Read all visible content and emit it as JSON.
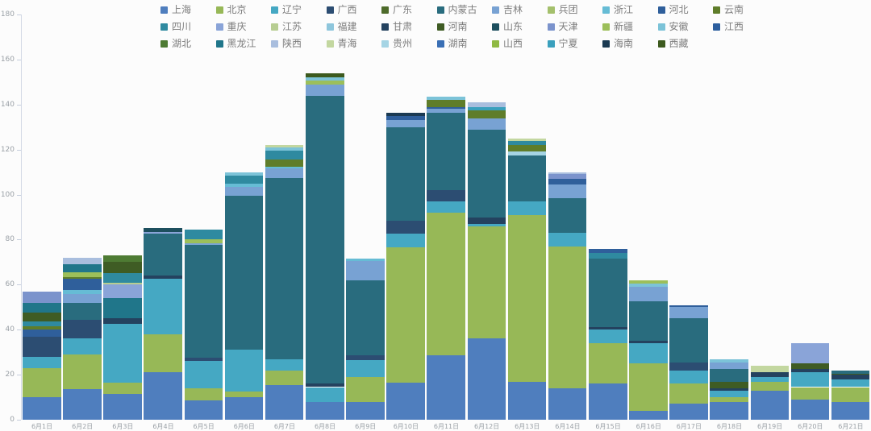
{
  "chart_data": {
    "type": "bar",
    "stacked": true,
    "title": "",
    "xlabel": "",
    "ylabel": "",
    "ylim": [
      0,
      180
    ],
    "y_step": 20,
    "grid": false,
    "legend_position": "top",
    "x_categories": [
      "6月1日",
      "6月2日",
      "6月3日",
      "6月4日",
      "6月5日",
      "6月6日",
      "6月7日",
      "6月8日",
      "6月9日",
      "6月10日",
      "6月11日",
      "6月12日",
      "6月13日",
      "6月14日",
      "6月15日",
      "6月16日",
      "6月17日",
      "6月18日",
      "6月19日",
      "6月20日",
      "6月21日"
    ],
    "legend_rows": [
      [
        "上海",
        "北京",
        "辽宁",
        "广西",
        "广东",
        "内蒙古",
        "吉林",
        "兵团",
        "浙江",
        "河北",
        "云南"
      ],
      [
        "四川",
        "重庆",
        "江苏",
        "福建",
        "甘肃",
        "河南",
        "山东",
        "天津",
        "新疆",
        "安徽",
        "江西"
      ],
      [
        "湖北",
        "黑龙江",
        "陕西",
        "青海",
        "贵州",
        "湖南",
        "山西",
        "宁夏",
        "海南",
        "西藏"
      ]
    ],
    "palette": {
      "上海": "#4f7ebe",
      "北京": "#97b857",
      "辽宁": "#45a8c3",
      "广西": "#2c4d72",
      "广东": "#4e6b2b",
      "内蒙古": "#296c7e",
      "吉林": "#78a2d3",
      "兵团": "#a4c06c",
      "浙江": "#66bcd5",
      "河北": "#2f5f9b",
      "云南": "#5f7d2a",
      "四川": "#2f8aa0",
      "重庆": "#8aa4d8",
      "江苏": "#b7cd92",
      "福建": "#8ec6dc",
      "甘肃": "#24425f",
      "河南": "#3f5c24",
      "山东": "#1d4f5e",
      "天津": "#7b93cc",
      "新疆": "#9cbf5a",
      "安徽": "#7cc3d8",
      "江西": "#2d5f9e",
      "湖北": "#4e7b33",
      "黑龙江": "#20768a",
      "陕西": "#a9bede",
      "青海": "#c3d7a0",
      "贵州": "#a5d4e4",
      "湖南": "#3a6fb5",
      "山西": "#8fb943",
      "宁夏": "#3aa0bd",
      "海南": "#1b3a52",
      "西藏": "#3d5a1e"
    },
    "bars": [
      {
        "label": "6月1日",
        "total": 57,
        "segments": [
          [
            "上海",
            10
          ],
          [
            "北京",
            13
          ],
          [
            "辽宁",
            5
          ],
          [
            "广西",
            9
          ],
          [
            "河北",
            3
          ],
          [
            "云南",
            1.5
          ],
          [
            "四川",
            2
          ],
          [
            "河南",
            4
          ],
          [
            "黑龙江",
            4.5
          ],
          [
            "天津",
            5
          ]
        ]
      },
      {
        "label": "6月2日",
        "total": 72,
        "segments": [
          [
            "上海",
            13.5
          ],
          [
            "北京",
            15.5
          ],
          [
            "辽宁",
            7
          ],
          [
            "广西",
            8.5
          ],
          [
            "内蒙古",
            7.5
          ],
          [
            "吉林",
            4
          ],
          [
            "浙江",
            1.5
          ],
          [
            "河北",
            5
          ],
          [
            "云南",
            1
          ],
          [
            "新疆",
            2
          ],
          [
            "黑龙江",
            3.5
          ],
          [
            "陕西",
            3
          ]
        ]
      },
      {
        "label": "6月3日",
        "total": 73,
        "segments": [
          [
            "上海",
            11.5
          ],
          [
            "北京",
            5
          ],
          [
            "辽宁",
            26
          ],
          [
            "甘肃",
            2.5
          ],
          [
            "黑龙江",
            9
          ],
          [
            "重庆",
            6
          ],
          [
            "江苏",
            1
          ],
          [
            "四川",
            4
          ],
          [
            "河南",
            5
          ],
          [
            "湖北",
            3
          ]
        ]
      },
      {
        "label": "6月4日",
        "total": 85,
        "segments": [
          [
            "上海",
            21
          ],
          [
            "北京",
            17
          ],
          [
            "辽宁",
            24.5
          ],
          [
            "甘肃",
            1.5
          ],
          [
            "内蒙古",
            18.5
          ],
          [
            "重庆",
            1
          ],
          [
            "山东",
            1.5
          ]
        ]
      },
      {
        "label": "6月5日",
        "total": 84.5,
        "segments": [
          [
            "上海",
            8.5
          ],
          [
            "北京",
            5.5
          ],
          [
            "辽宁",
            12
          ],
          [
            "广西",
            1.5
          ],
          [
            "内蒙古",
            50
          ],
          [
            "吉林",
            1
          ],
          [
            "新疆",
            1.5
          ],
          [
            "四川",
            4.5
          ]
        ]
      },
      {
        "label": "6月6日",
        "total": 110,
        "segments": [
          [
            "上海",
            10
          ],
          [
            "北京",
            2.5
          ],
          [
            "辽宁",
            18.5
          ],
          [
            "内蒙古",
            68.5
          ],
          [
            "吉林",
            4
          ],
          [
            "浙江",
            1.5
          ],
          [
            "四川",
            3.5
          ],
          [
            "安徽",
            1.5
          ]
        ]
      },
      {
        "label": "6月7日",
        "total": 122,
        "segments": [
          [
            "上海",
            15.5
          ],
          [
            "北京",
            6.5
          ],
          [
            "辽宁",
            5
          ],
          [
            "内蒙古",
            80.5
          ],
          [
            "吉林",
            4
          ],
          [
            "浙江",
            1
          ],
          [
            "云南",
            3
          ],
          [
            "四川",
            4
          ],
          [
            "安徽",
            1.5
          ],
          [
            "青海",
            1
          ]
        ]
      },
      {
        "label": "6月8日",
        "total": 154,
        "segments": [
          [
            "上海",
            8
          ],
          [
            "辽宁",
            6.5
          ],
          [
            "甘肃",
            1.5
          ],
          [
            "内蒙古",
            128
          ],
          [
            "吉林",
            5
          ],
          [
            "新疆",
            1.5
          ],
          [
            "安徽",
            1.5
          ],
          [
            "西藏",
            2
          ]
        ]
      },
      {
        "label": "6月9日",
        "total": 71.5,
        "segments": [
          [
            "上海",
            8
          ],
          [
            "北京",
            11
          ],
          [
            "辽宁",
            7.5
          ],
          [
            "广西",
            2
          ],
          [
            "内蒙古",
            33.5
          ],
          [
            "吉林",
            8.5
          ],
          [
            "浙江",
            1
          ]
        ]
      },
      {
        "label": "6月10日",
        "total": 136.5,
        "segments": [
          [
            "上海",
            16.5
          ],
          [
            "北京",
            60
          ],
          [
            "辽宁",
            6
          ],
          [
            "广西",
            6
          ],
          [
            "内蒙古",
            41.5
          ],
          [
            "吉林",
            3
          ],
          [
            "河北",
            2
          ],
          [
            "海南",
            1.5
          ]
        ]
      },
      {
        "label": "6月11日",
        "total": 143.5,
        "segments": [
          [
            "上海",
            28.5
          ],
          [
            "北京",
            63.5
          ],
          [
            "辽宁",
            5
          ],
          [
            "广西",
            5
          ],
          [
            "内蒙古",
            34.5
          ],
          [
            "吉林",
            1.5
          ],
          [
            "河北",
            1
          ],
          [
            "云南",
            3
          ],
          [
            "安徽",
            1.5
          ]
        ]
      },
      {
        "label": "6月12日",
        "total": 141,
        "segments": [
          [
            "上海",
            36
          ],
          [
            "北京",
            50
          ],
          [
            "辽宁",
            1
          ],
          [
            "甘肃",
            3
          ],
          [
            "内蒙古",
            39
          ],
          [
            "吉林",
            5
          ],
          [
            "云南",
            3.5
          ],
          [
            "宁夏",
            1.5
          ],
          [
            "陕西",
            2
          ]
        ]
      },
      {
        "label": "6月13日",
        "total": 125,
        "segments": [
          [
            "上海",
            17
          ],
          [
            "北京",
            74
          ],
          [
            "辽宁",
            6
          ],
          [
            "内蒙古",
            20.5
          ],
          [
            "贵州",
            1.5
          ],
          [
            "云南",
            3
          ],
          [
            "四川",
            2
          ],
          [
            "青海",
            1
          ]
        ]
      },
      {
        "label": "6月14日",
        "total": 110,
        "segments": [
          [
            "上海",
            14
          ],
          [
            "北京",
            63
          ],
          [
            "辽宁",
            6
          ],
          [
            "内蒙古",
            15.5
          ],
          [
            "吉林",
            6
          ],
          [
            "河北",
            2.5
          ],
          [
            "天津",
            2
          ],
          [
            "陕西",
            1
          ]
        ]
      },
      {
        "label": "6月15日",
        "total": 76,
        "segments": [
          [
            "上海",
            16
          ],
          [
            "北京",
            18
          ],
          [
            "辽宁",
            6
          ],
          [
            "甘肃",
            1
          ],
          [
            "内蒙古",
            30.5
          ],
          [
            "四川",
            2.5
          ],
          [
            "河北",
            2
          ]
        ]
      },
      {
        "label": "6月16日",
        "total": 62,
        "segments": [
          [
            "上海",
            4
          ],
          [
            "北京",
            21
          ],
          [
            "辽宁",
            9
          ],
          [
            "甘肃",
            1
          ],
          [
            "内蒙古",
            17.5
          ],
          [
            "吉林",
            6.5
          ],
          [
            "安徽",
            1.5
          ],
          [
            "新疆",
            1.5
          ]
        ]
      },
      {
        "label": "6月17日",
        "total": 51,
        "segments": [
          [
            "上海",
            7
          ],
          [
            "北京",
            9
          ],
          [
            "辽宁",
            6
          ],
          [
            "广西",
            3.5
          ],
          [
            "内蒙古",
            19.5
          ],
          [
            "吉林",
            5
          ],
          [
            "河北",
            1
          ]
        ]
      },
      {
        "label": "6月18日",
        "total": 27,
        "segments": [
          [
            "上海",
            8
          ],
          [
            "北京",
            2
          ],
          [
            "辽宁",
            3
          ],
          [
            "甘肃",
            1
          ],
          [
            "河南",
            3
          ],
          [
            "内蒙古",
            5.5
          ],
          [
            "吉林",
            3
          ],
          [
            "安徽",
            1.5
          ]
        ]
      },
      {
        "label": "6月19日",
        "total": 24,
        "segments": [
          [
            "上海",
            13
          ],
          [
            "北京",
            4
          ],
          [
            "辽宁",
            2
          ],
          [
            "甘肃",
            2
          ],
          [
            "青海",
            3
          ]
        ]
      },
      {
        "label": "6月20日",
        "total": 34,
        "segments": [
          [
            "上海",
            9
          ],
          [
            "北京",
            5.5
          ],
          [
            "辽宁",
            6.5
          ],
          [
            "甘肃",
            1.5
          ],
          [
            "河南",
            2.5
          ],
          [
            "重庆",
            9
          ]
        ]
      },
      {
        "label": "6月21日",
        "total": 22,
        "segments": [
          [
            "上海",
            8
          ],
          [
            "北京",
            6.5
          ],
          [
            "辽宁",
            3.5
          ],
          [
            "甘肃",
            2
          ],
          [
            "河南",
            0.5
          ],
          [
            "内蒙古",
            1.5
          ]
        ]
      }
    ],
    "colors_meta": {
      "background": "#fcfcfc",
      "axis_line": "#d3dae6",
      "axis_label": "#9aa0a6",
      "legend_text": "#7d7d7d"
    }
  }
}
